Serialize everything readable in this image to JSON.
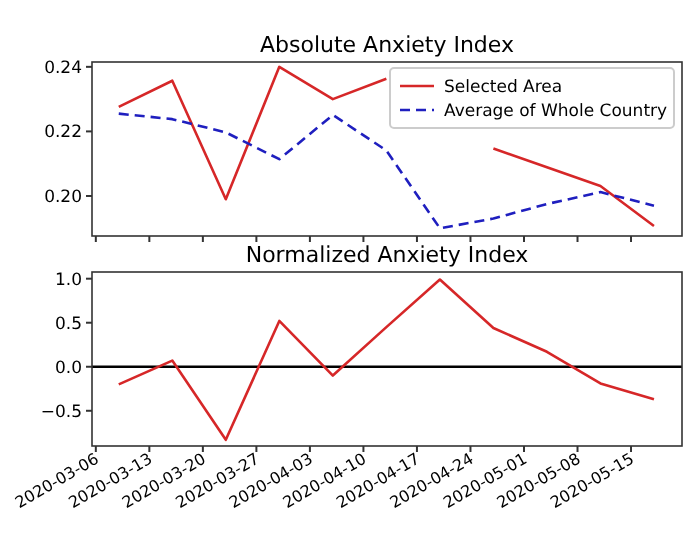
{
  "chart_data": [
    {
      "type": "line",
      "title": "Absolute Anxiety Index",
      "x": [
        "2020-03-09",
        "2020-03-16",
        "2020-03-23",
        "2020-03-30",
        "2020-04-06",
        "2020-04-13",
        "2020-04-20",
        "2020-04-27",
        "2020-05-04",
        "2020-05-11",
        "2020-05-18"
      ],
      "series": [
        {
          "name": "Selected Area",
          "color": "#d62728",
          "line_style": "solid",
          "values": [
            0.2276,
            0.2357,
            0.199,
            0.24,
            0.23,
            0.2363,
            null,
            0.2147,
            0.2089,
            0.2031,
            0.1907
          ]
        },
        {
          "name": "Average of Whole Country",
          "color": "#1f1fbf",
          "line_style": "dashed",
          "values": [
            0.2255,
            0.2238,
            0.2197,
            0.2114,
            0.2251,
            0.2141,
            0.19,
            0.193,
            0.1975,
            0.2012,
            0.197
          ]
        }
      ],
      "xlim": [
        "2020-03-05T12:00",
        "2020-05-21T16:00"
      ],
      "xticks": [
        "2020-03-06",
        "2020-03-13",
        "2020-03-20",
        "2020-03-27",
        "2020-04-03",
        "2020-04-10",
        "2020-04-17",
        "2020-04-24",
        "2020-05-01",
        "2020-05-08",
        "2020-05-15"
      ],
      "ylim": [
        0.1876,
        0.2415
      ],
      "yticks": [
        {
          "value": 0.2,
          "label": "0.20"
        },
        {
          "value": 0.22,
          "label": "0.22"
        },
        {
          "value": 0.24,
          "label": "0.24"
        }
      ],
      "tick_labels": "y",
      "legend": "top right",
      "grid": false
    },
    {
      "type": "line",
      "title": "Normalized Anxiety Index",
      "x": [
        "2020-03-09",
        "2020-03-16",
        "2020-03-23",
        "2020-03-30",
        "2020-04-06",
        "2020-04-13",
        "2020-04-20",
        "2020-04-27",
        "2020-05-04",
        "2020-05-11",
        "2020-05-18"
      ],
      "series": [
        {
          "color": "#d62728",
          "values": [
            -0.2,
            0.07,
            -0.83,
            0.52,
            -0.1,
            0.45,
            0.99,
            0.44,
            0.17,
            -0.19,
            -0.37
          ]
        }
      ],
      "xlim": [
        "2020-03-05T12:00",
        "2020-05-21T16:00"
      ],
      "xticks": [
        "2020-03-06",
        "2020-03-13",
        "2020-03-20",
        "2020-03-27",
        "2020-04-03",
        "2020-04-10",
        "2020-04-17",
        "2020-04-24",
        "2020-05-01",
        "2020-05-08",
        "2020-05-15"
      ],
      "ylim": [
        -0.9,
        1.076
      ],
      "yticks": [
        {
          "value": -0.5,
          "label": "−0.5"
        },
        {
          "value": 0,
          "label": "0.0"
        },
        {
          "value": 0.5,
          "label": "0.5"
        },
        {
          "value": 1,
          "label": "1.0"
        }
      ],
      "ref_lines": [
        {
          "axis": "y",
          "value": 0,
          "color": "#000000"
        }
      ],
      "grid": false
    }
  ]
}
